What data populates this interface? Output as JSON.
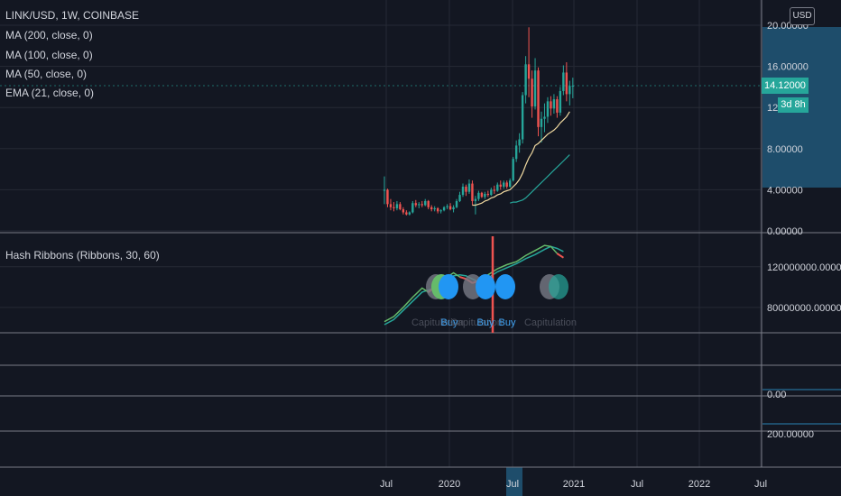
{
  "symbol_line": "LINK/USD, 1W, COINBASE",
  "indicators": [
    "MA (200, close, 0)",
    "MA (100, close, 0)",
    "MA (50, close, 0)",
    "EMA (21, close, 0)"
  ],
  "hash_ribbons_label": "Hash Ribbons (Ribbons, 30, 60)",
  "currency_button": "USD",
  "last_price_label": "14.12000",
  "countdown_label": "3d 8h",
  "colors": {
    "background": "#131722",
    "grid": "#3a3e4a",
    "up": "#26a69a",
    "down": "#ef5350",
    "ema21": "#f0d9a0",
    "ma50": "#26a69a",
    "ribbon_fast": "#66bb6a",
    "ribbon_slow": "#26a69a",
    "buy": "#2196f3",
    "capitulation": "#787b86",
    "axis_highlight": "#1e4d6b"
  },
  "chart_data": [
    {
      "type": "candlestick",
      "title": "LINK/USD, 1W, COINBASE",
      "price_axis_ticks": [
        "20.00000",
        "16.00000",
        "12.00000",
        "8.00000",
        "4.00000",
        "0.00000"
      ],
      "ylim": [
        0,
        20
      ],
      "time_axis_labels": [
        "Jul",
        "2020",
        "Jul",
        "2021",
        "Jul",
        "2022",
        "Jul"
      ],
      "last_price": 14.12,
      "candles": [
        {
          "o": 3.9,
          "h": 5.3,
          "l": 2.6,
          "c": 4.0
        },
        {
          "o": 4.0,
          "h": 4.1,
          "l": 2.3,
          "c": 2.6
        },
        {
          "o": 2.6,
          "h": 3.1,
          "l": 2.0,
          "c": 2.3
        },
        {
          "o": 2.3,
          "h": 2.8,
          "l": 1.9,
          "c": 2.2
        },
        {
          "o": 2.2,
          "h": 2.9,
          "l": 2.0,
          "c": 2.6
        },
        {
          "o": 2.6,
          "h": 2.8,
          "l": 2.0,
          "c": 2.1
        },
        {
          "o": 2.1,
          "h": 2.3,
          "l": 1.6,
          "c": 1.8
        },
        {
          "o": 1.8,
          "h": 2.0,
          "l": 1.5,
          "c": 1.6
        },
        {
          "o": 1.6,
          "h": 1.9,
          "l": 1.5,
          "c": 1.8
        },
        {
          "o": 1.8,
          "h": 2.9,
          "l": 1.7,
          "c": 2.7
        },
        {
          "o": 2.7,
          "h": 3.0,
          "l": 2.3,
          "c": 2.5
        },
        {
          "o": 2.5,
          "h": 2.8,
          "l": 2.2,
          "c": 2.6
        },
        {
          "o": 2.6,
          "h": 2.9,
          "l": 2.3,
          "c": 2.5
        },
        {
          "o": 2.5,
          "h": 3.1,
          "l": 2.4,
          "c": 2.9
        },
        {
          "o": 2.9,
          "h": 3.0,
          "l": 2.1,
          "c": 2.3
        },
        {
          "o": 2.3,
          "h": 2.5,
          "l": 1.9,
          "c": 2.1
        },
        {
          "o": 2.1,
          "h": 2.4,
          "l": 1.9,
          "c": 2.2
        },
        {
          "o": 2.2,
          "h": 2.3,
          "l": 1.7,
          "c": 1.9
        },
        {
          "o": 1.9,
          "h": 2.1,
          "l": 1.7,
          "c": 2.0
        },
        {
          "o": 2.0,
          "h": 2.4,
          "l": 1.9,
          "c": 2.3
        },
        {
          "o": 2.3,
          "h": 2.6,
          "l": 2.1,
          "c": 2.4
        },
        {
          "o": 2.4,
          "h": 2.7,
          "l": 2.0,
          "c": 2.1
        },
        {
          "o": 2.1,
          "h": 2.5,
          "l": 1.8,
          "c": 2.3
        },
        {
          "o": 2.3,
          "h": 3.1,
          "l": 2.2,
          "c": 2.9
        },
        {
          "o": 2.9,
          "h": 3.8,
          "l": 2.8,
          "c": 3.5
        },
        {
          "o": 3.5,
          "h": 4.6,
          "l": 3.3,
          "c": 4.3
        },
        {
          "o": 4.3,
          "h": 4.5,
          "l": 3.4,
          "c": 3.8
        },
        {
          "o": 3.8,
          "h": 5.0,
          "l": 3.6,
          "c": 4.6
        },
        {
          "o": 4.6,
          "h": 4.9,
          "l": 2.5,
          "c": 2.9
        },
        {
          "o": 2.9,
          "h": 3.4,
          "l": 1.6,
          "c": 3.1
        },
        {
          "o": 3.1,
          "h": 3.9,
          "l": 2.9,
          "c": 3.7
        },
        {
          "o": 3.7,
          "h": 3.8,
          "l": 3.2,
          "c": 3.3
        },
        {
          "o": 3.3,
          "h": 3.8,
          "l": 3.1,
          "c": 3.6
        },
        {
          "o": 3.6,
          "h": 3.9,
          "l": 3.3,
          "c": 3.5
        },
        {
          "o": 3.5,
          "h": 4.2,
          "l": 3.4,
          "c": 4.0
        },
        {
          "o": 4.0,
          "h": 4.4,
          "l": 3.6,
          "c": 3.9
        },
        {
          "o": 3.9,
          "h": 4.7,
          "l": 3.8,
          "c": 4.5
        },
        {
          "o": 4.5,
          "h": 4.9,
          "l": 4.0,
          "c": 4.3
        },
        {
          "o": 4.3,
          "h": 4.9,
          "l": 4.1,
          "c": 4.7
        },
        {
          "o": 4.7,
          "h": 4.9,
          "l": 4.1,
          "c": 4.3
        },
        {
          "o": 4.3,
          "h": 5.1,
          "l": 4.2,
          "c": 4.9
        },
        {
          "o": 4.9,
          "h": 7.2,
          "l": 4.8,
          "c": 7.0
        },
        {
          "o": 7.0,
          "h": 8.8,
          "l": 6.7,
          "c": 8.3
        },
        {
          "o": 8.3,
          "h": 9.5,
          "l": 7.6,
          "c": 8.9
        },
        {
          "o": 8.9,
          "h": 13.5,
          "l": 8.5,
          "c": 13.2
        },
        {
          "o": 13.2,
          "h": 17.0,
          "l": 12.4,
          "c": 16.2
        },
        {
          "o": 16.2,
          "h": 19.8,
          "l": 13.0,
          "c": 14.8
        },
        {
          "o": 14.8,
          "h": 15.6,
          "l": 11.0,
          "c": 12.1
        },
        {
          "o": 12.1,
          "h": 16.8,
          "l": 11.8,
          "c": 15.6
        },
        {
          "o": 15.6,
          "h": 15.9,
          "l": 9.2,
          "c": 10.1
        },
        {
          "o": 10.1,
          "h": 11.6,
          "l": 8.6,
          "c": 10.9
        },
        {
          "o": 10.9,
          "h": 12.4,
          "l": 9.6,
          "c": 11.1
        },
        {
          "o": 11.1,
          "h": 13.0,
          "l": 10.5,
          "c": 12.6
        },
        {
          "o": 12.6,
          "h": 13.1,
          "l": 11.2,
          "c": 11.9
        },
        {
          "o": 11.9,
          "h": 13.3,
          "l": 11.4,
          "c": 12.8
        },
        {
          "o": 12.8,
          "h": 13.1,
          "l": 11.0,
          "c": 11.5
        },
        {
          "o": 11.5,
          "h": 14.0,
          "l": 11.2,
          "c": 13.6
        },
        {
          "o": 13.6,
          "h": 16.1,
          "l": 13.2,
          "c": 15.4
        },
        {
          "o": 15.4,
          "h": 16.4,
          "l": 12.6,
          "c": 13.3
        },
        {
          "o": 13.3,
          "h": 14.6,
          "l": 12.2,
          "c": 14.1
        },
        {
          "o": 14.1,
          "h": 14.9,
          "l": 12.9,
          "c": 14.12
        }
      ],
      "ema21": [
        [
          28,
          2.5
        ],
        [
          29,
          2.5
        ],
        [
          30,
          2.6
        ],
        [
          31,
          2.7
        ],
        [
          32,
          2.9
        ],
        [
          33,
          3.0
        ],
        [
          34,
          3.2
        ],
        [
          35,
          3.3
        ],
        [
          36,
          3.5
        ],
        [
          37,
          3.6
        ],
        [
          38,
          3.8
        ],
        [
          39,
          3.9
        ],
        [
          40,
          4.0
        ],
        [
          41,
          4.3
        ],
        [
          42,
          4.6
        ],
        [
          43,
          5.0
        ],
        [
          44,
          5.6
        ],
        [
          45,
          6.4
        ],
        [
          46,
          7.1
        ],
        [
          47,
          7.6
        ],
        [
          48,
          8.3
        ],
        [
          49,
          8.5
        ],
        [
          50,
          8.8
        ],
        [
          51,
          9.1
        ],
        [
          52,
          9.4
        ],
        [
          53,
          9.6
        ],
        [
          54,
          9.8
        ],
        [
          55,
          10.1
        ],
        [
          56,
          10.5
        ],
        [
          57,
          10.8
        ],
        [
          58,
          11.1
        ],
        [
          59,
          11.6
        ]
      ],
      "ma50": [
        [
          40,
          2.7
        ],
        [
          41,
          2.8
        ],
        [
          42,
          2.8
        ],
        [
          43,
          2.9
        ],
        [
          44,
          3.0
        ],
        [
          45,
          3.2
        ],
        [
          46,
          3.5
        ],
        [
          47,
          3.8
        ],
        [
          48,
          4.1
        ],
        [
          49,
          4.4
        ],
        [
          50,
          4.7
        ],
        [
          51,
          5.0
        ],
        [
          52,
          5.3
        ],
        [
          53,
          5.6
        ],
        [
          54,
          5.9
        ],
        [
          55,
          6.2
        ],
        [
          56,
          6.5
        ],
        [
          57,
          6.8
        ],
        [
          58,
          7.1
        ],
        [
          59,
          7.4
        ]
      ]
    },
    {
      "type": "line",
      "title": "Hash Ribbons (Ribbons, 30, 60)",
      "axis_ticks": [
        "120000000.00000",
        "80000000.00000"
      ],
      "ylim": [
        55000000,
        150000000
      ],
      "series": [
        {
          "values": [
            [
              0,
              66000000
            ],
            [
              3,
              71000000
            ],
            [
              6,
              80000000
            ],
            [
              9,
              90000000
            ],
            [
              12,
              99000000
            ],
            [
              14,
              95000000
            ],
            [
              16,
              100000000
            ],
            [
              18,
              106000000
            ],
            [
              20,
              110000000
            ],
            [
              22,
              114000000
            ],
            [
              24,
              110000000
            ],
            [
              26,
              108000000
            ],
            [
              28,
              104000000
            ],
            [
              30,
              106000000
            ],
            [
              33,
              112000000
            ],
            [
              36,
              118000000
            ],
            [
              39,
              122000000
            ],
            [
              42,
              125000000
            ],
            [
              45,
              131000000
            ],
            [
              48,
              136000000
            ],
            [
              51,
              141000000
            ],
            [
              53,
              140000000
            ],
            [
              55,
              133000000
            ],
            [
              57,
              129000000
            ]
          ]
        },
        {
          "values": [
            [
              0,
              63000000
            ],
            [
              3,
              68000000
            ],
            [
              6,
              77000000
            ],
            [
              9,
              86000000
            ],
            [
              12,
              95000000
            ],
            [
              14,
              97000000
            ],
            [
              16,
              99000000
            ],
            [
              18,
              103000000
            ],
            [
              20,
              107000000
            ],
            [
              22,
              111000000
            ],
            [
              24,
              112000000
            ],
            [
              26,
              111000000
            ],
            [
              28,
              108000000
            ],
            [
              30,
              105000000
            ],
            [
              33,
              109000000
            ],
            [
              36,
              115000000
            ],
            [
              39,
              119000000
            ],
            [
              42,
              123000000
            ],
            [
              45,
              128000000
            ],
            [
              48,
              132000000
            ],
            [
              51,
              137000000
            ],
            [
              53,
              140000000
            ],
            [
              55,
              138000000
            ],
            [
              57,
              135000000
            ]
          ]
        }
      ],
      "event_labels": [
        "Capitulation",
        "Buy",
        "Capitulation",
        "Buy",
        "Buy",
        "Capitulation"
      ],
      "extra_axis_ticks": [
        "0.00",
        "200.00000"
      ]
    }
  ]
}
